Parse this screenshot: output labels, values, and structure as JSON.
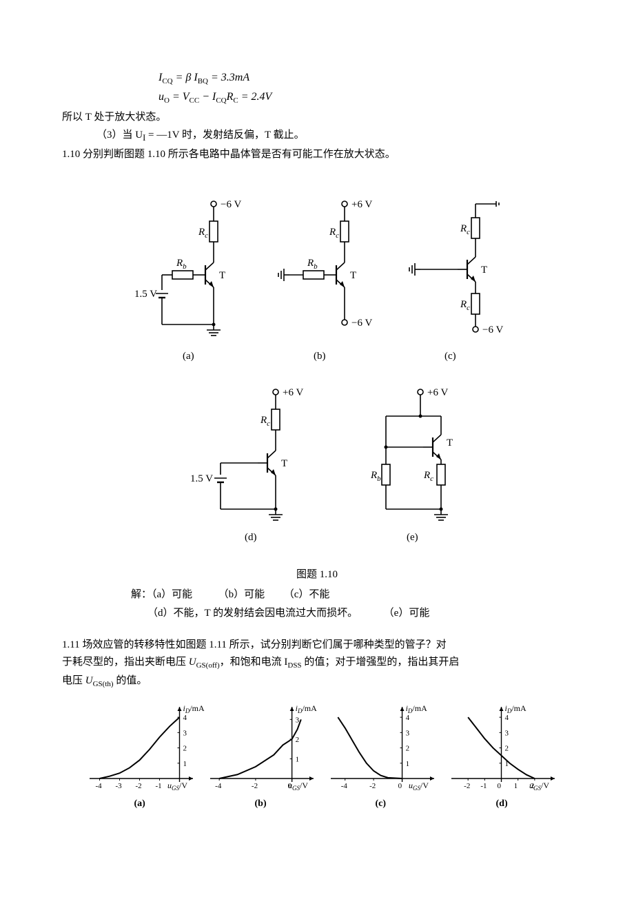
{
  "equations": {
    "line1": "I_CQ = β I_BQ = 3.3mA",
    "line2": "u_O = V_CC − I_CQ R_C = 2.4V"
  },
  "text": {
    "so_amplify": "所以 T 处于放大状态。",
    "item3": "（3）当 U_I = —1V 时，发射结反偏，T 截止。",
    "q110": "1.10 分别判断图题 1.10 所示各电路中晶体管是否有可能工作在放大状态。",
    "caption110": "图题 1.10",
    "ansA": "解：（a）可能",
    "ansB": "（b）可能",
    "ansC": "（c）不能",
    "ansD": "（d）不能，T 的发射结会因电流过大而损坏。",
    "ansE": "（e）可能",
    "q111_l1": "1.11 场效应管的转移特性如图题 1.11 所示，试分别判断它们属于哪种类型的管子？对",
    "q111_l2": "于耗尽型的，指出夹断电压 U_GS(off)，和饱和电流 I_DSS 的值；对于增强型的，指出其开启",
    "q111_l3": "电压 U_GS(th) 的值。"
  },
  "circuits": {
    "font": "Times New Roman, serif",
    "label_fs": 15,
    "sub_fs": 11,
    "stroke": "#000000",
    "stroke_w": 1.6,
    "row1": {
      "a": {
        "vtop": "−6 V",
        "vleft": "1.5 V",
        "Rc": "R",
        "Rc_sub": "c",
        "Rb": "R",
        "Rb_sub": "b",
        "T": "T",
        "cap": "(a)"
      },
      "b": {
        "vtop": "+6 V",
        "vbot": "−6 V",
        "Rc": "R",
        "Rc_sub": "c",
        "Rb": "R",
        "Rb_sub": "b",
        "T": "T",
        "cap": "(b)"
      },
      "c": {
        "vbot": "−6 V",
        "Rc": "R",
        "Rc_sub": "c",
        "Re": "R",
        "Re_sub": "c",
        "T": "T",
        "cap": "(c)"
      }
    },
    "row2": {
      "d": {
        "vtop": "+6 V",
        "vleft": "1.5 V",
        "Rc": "R",
        "Rc_sub": "c",
        "T": "T",
        "cap": "(d)"
      },
      "e": {
        "vtop": "+6 V",
        "Rb": "R",
        "Rb_sub": "b",
        "Rc": "R",
        "Rc_sub": "c",
        "T": "T",
        "cap": "(e)"
      }
    }
  },
  "charts": {
    "ylabel": "i_D/mA",
    "xlabel": "u_GS/V",
    "stroke": "#000000",
    "stroke_w": 2.0,
    "bg": "#ffffff",
    "a": {
      "xlim": [
        -4.5,
        0.5
      ],
      "ylim": [
        0,
        4.5
      ],
      "xticks": [
        -4,
        -3,
        -2,
        -1
      ],
      "yticks": [
        1,
        2,
        3,
        4
      ],
      "curve": [
        [
          -4,
          0
        ],
        [
          -3.5,
          0.15
        ],
        [
          -3,
          0.35
        ],
        [
          -2.5,
          0.7
        ],
        [
          -2,
          1.2
        ],
        [
          -1.5,
          1.9
        ],
        [
          -1,
          2.7
        ],
        [
          -0.5,
          3.4
        ],
        [
          0,
          4
        ]
      ],
      "cap": "(a)"
    },
    "b": {
      "xlim": [
        -4.5,
        1
      ],
      "ylim": [
        0,
        3.5
      ],
      "xticks": [
        -4,
        -2,
        0
      ],
      "yticks": [
        1,
        2,
        3
      ],
      "curve": [
        [
          -4,
          0
        ],
        [
          -3,
          0.2
        ],
        [
          -2,
          0.6
        ],
        [
          -1,
          1.2
        ],
        [
          -0.5,
          1.7
        ],
        [
          0,
          2
        ],
        [
          0.3,
          2.5
        ],
        [
          0.5,
          3
        ]
      ],
      "cap": "(b)"
    },
    "c": {
      "xlim": [
        -5,
        2
      ],
      "ylim": [
        0,
        4.5
      ],
      "xticks": [
        -4,
        -2,
        0
      ],
      "yticks": [
        1,
        2,
        3,
        4
      ],
      "curve": [
        [
          -4.5,
          4
        ],
        [
          -4,
          3.3
        ],
        [
          -3.5,
          2.5
        ],
        [
          -3,
          1.7
        ],
        [
          -2.5,
          1.0
        ],
        [
          -2,
          0.5
        ],
        [
          -1.5,
          0.2
        ],
        [
          -1,
          0.05
        ],
        [
          0,
          0
        ]
      ],
      "cap": "(c)"
    },
    "d": {
      "xlim": [
        -3,
        3
      ],
      "ylim": [
        0,
        4.5
      ],
      "xticks": [
        -2,
        -1,
        0,
        1,
        2
      ],
      "yticks": [
        1,
        2,
        3,
        4
      ],
      "curve": [
        [
          -2,
          4
        ],
        [
          -1.5,
          3.3
        ],
        [
          -1,
          2.6
        ],
        [
          -0.5,
          2.0
        ],
        [
          0,
          1.5
        ],
        [
          0.5,
          1.0
        ],
        [
          1,
          0.6
        ],
        [
          1.5,
          0.25
        ],
        [
          2,
          0
        ]
      ],
      "cap": "(d)"
    }
  }
}
